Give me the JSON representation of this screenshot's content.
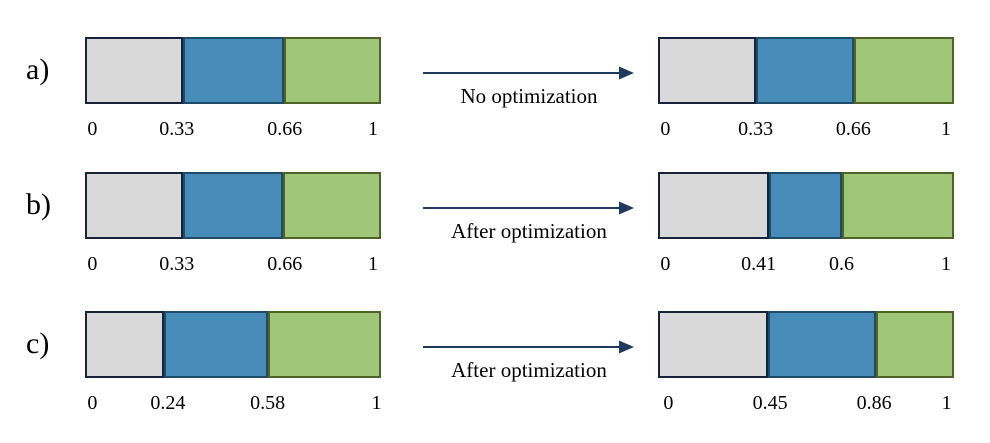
{
  "colors": {
    "background": "#FFFFFF",
    "segment_gray": "#D9D9D9",
    "segment_blue": "#488CBA",
    "segment_green": "#A0C777",
    "border_gray": "#17233A",
    "border_blue": "#1E4C66",
    "border_green": "#4F6228",
    "arrow": "#1F3A5F",
    "text": "#000000"
  },
  "segment_order": [
    "gray",
    "blue",
    "green"
  ],
  "rows": [
    {
      "id": "a",
      "label": "a)",
      "arrow_label": "No optimization",
      "left_bar": {
        "boundaries": [
          0.33,
          0.671
        ],
        "ticks": [
          "0",
          "0.33",
          "0.66",
          "1"
        ],
        "tick_pos": [
          0.025,
          0.31,
          0.675,
          0.973
        ]
      },
      "right_bar": {
        "boundaries": [
          0.332,
          0.661
        ],
        "ticks": [
          "0",
          "0.33",
          "0.66",
          "1"
        ],
        "tick_pos": [
          0.025,
          0.33,
          0.66,
          0.973
        ]
      }
    },
    {
      "id": "b",
      "label": "b)",
      "arrow_label": "After optimization",
      "left_bar": {
        "boundaries": [
          0.33,
          0.668
        ],
        "ticks": [
          "0",
          "0.33",
          "0.66",
          "1"
        ],
        "tick_pos": [
          0.025,
          0.31,
          0.675,
          0.973
        ]
      },
      "right_bar": {
        "boundaries": [
          0.376,
          0.62
        ],
        "ticks": [
          "0",
          "0.41",
          "0.6",
          "1"
        ],
        "tick_pos": [
          0.025,
          0.34,
          0.62,
          0.973
        ]
      }
    },
    {
      "id": "c",
      "label": "c)",
      "arrow_label": "After optimization",
      "left_bar": {
        "boundaries": [
          0.268,
          0.617
        ],
        "ticks": [
          "0",
          "0.24",
          "0.58",
          "1"
        ],
        "tick_pos": [
          0.025,
          0.28,
          0.617,
          0.985
        ]
      },
      "right_bar": {
        "boundaries": [
          0.372,
          0.738
        ],
        "ticks": [
          "0",
          "0.45",
          "0.86",
          "1"
        ],
        "tick_pos": [
          0.035,
          0.379,
          0.73,
          0.975
        ]
      }
    }
  ]
}
